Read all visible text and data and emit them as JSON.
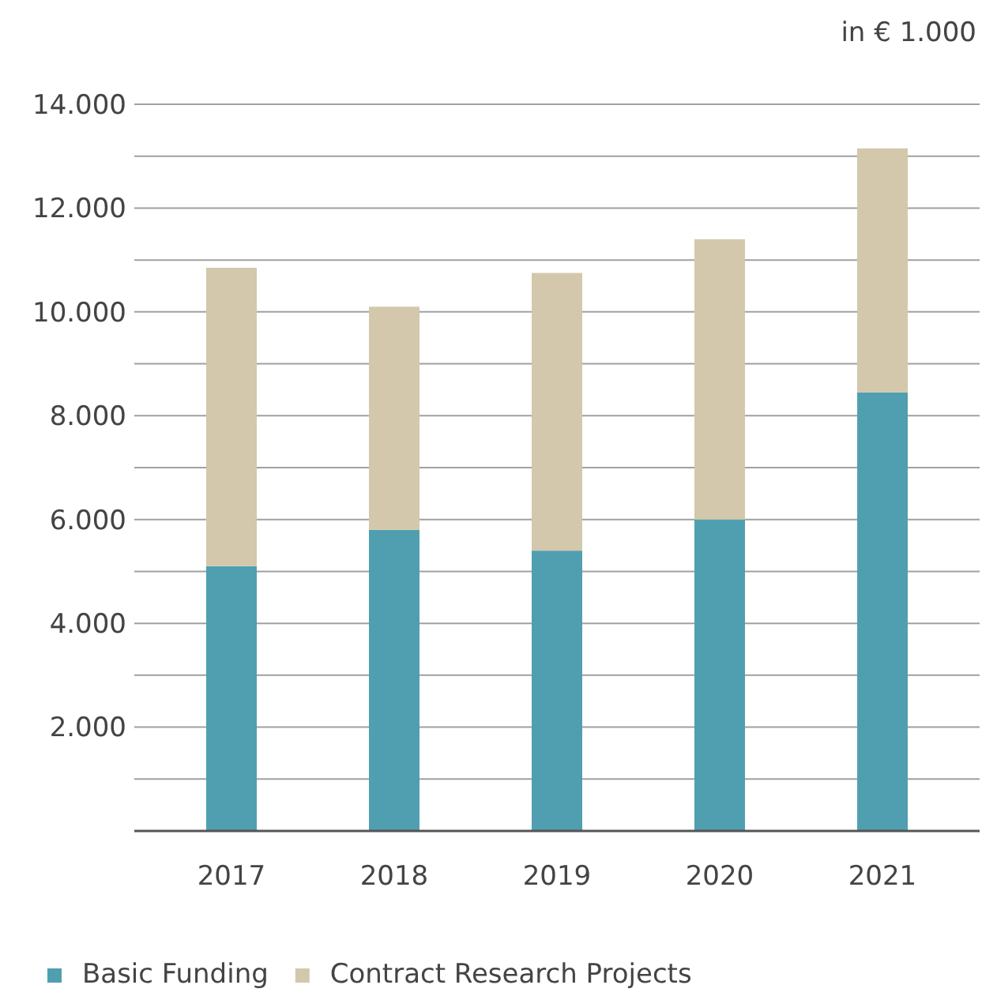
{
  "chart_data": {
    "type": "bar",
    "ylabel": "in € 1.000",
    "categories": [
      "2017",
      "2018",
      "2019",
      "2020",
      "2021"
    ],
    "stacked": true,
    "series": [
      {
        "name": "Basic Funding",
        "color": "#509fb0",
        "values": [
          5100,
          5800,
          5400,
          6000,
          8450
        ]
      },
      {
        "name": "Contract Research Projects",
        "color": "#d3c8ab",
        "values": [
          5750,
          4300,
          5350,
          5400,
          4700
        ]
      }
    ],
    "ylim": [
      0,
      14000
    ],
    "yticks": [
      {
        "value": 1000,
        "label": null
      },
      {
        "value": 2000,
        "label": "2.000"
      },
      {
        "value": 3000,
        "label": null
      },
      {
        "value": 4000,
        "label": "4.000"
      },
      {
        "value": 5000,
        "label": null
      },
      {
        "value": 6000,
        "label": "6.000"
      },
      {
        "value": 7000,
        "label": null
      },
      {
        "value": 8000,
        "label": "8.000"
      },
      {
        "value": 9000,
        "label": null
      },
      {
        "value": 10000,
        "label": "10.000"
      },
      {
        "value": 11000,
        "label": null
      },
      {
        "value": 12000,
        "label": "12.000"
      },
      {
        "value": 13000,
        "label": null
      },
      {
        "value": 14000,
        "label": "14.000"
      }
    ],
    "grid": "y",
    "legend": "bottom"
  }
}
